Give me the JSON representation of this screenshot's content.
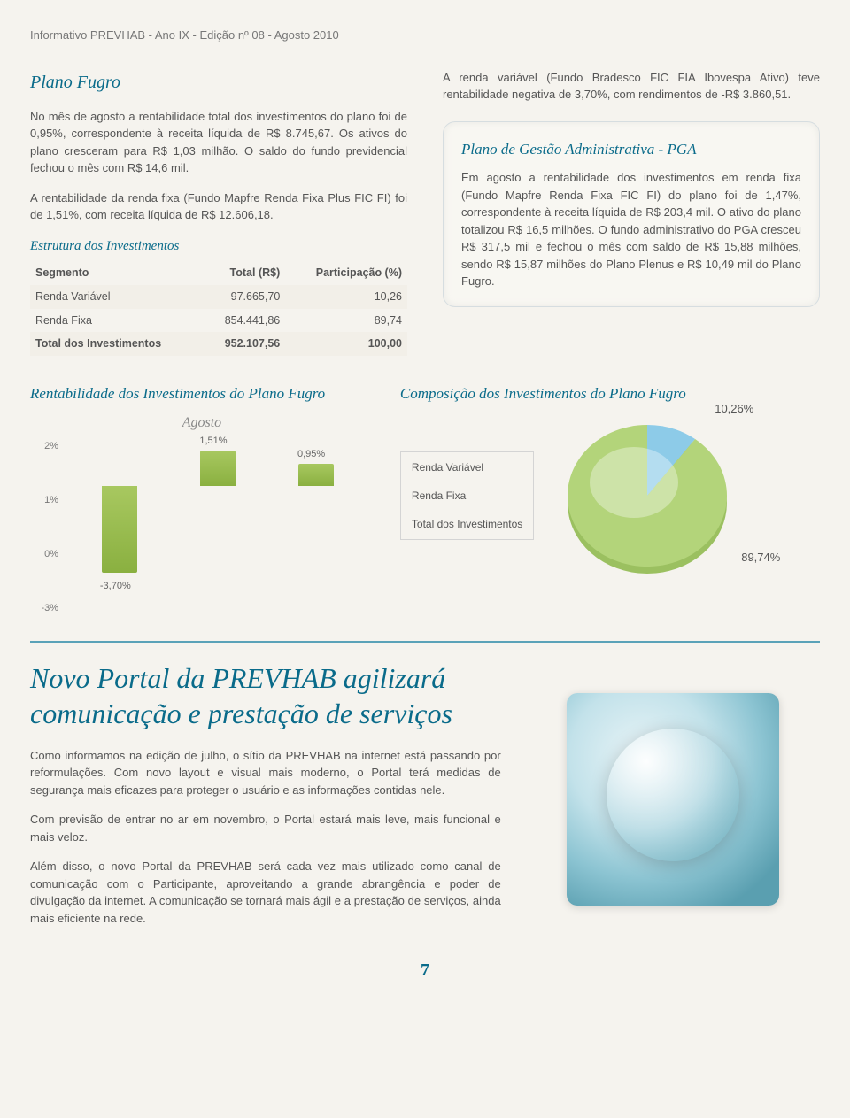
{
  "header": "Informativo PREVHAB  -  Ano IX  -  Edição nº 08  -  Agosto 2010",
  "plano_fugro": {
    "title": "Plano Fugro",
    "p1": "No mês de agosto a rentabilidade total dos investimentos do plano foi de 0,95%, correspondente à receita líquida de R$ 8.745,67. Os ativos do plano cresceram para R$ 1,03 milhão. O saldo do fundo previdencial fechou o mês com R$ 14,6 mil.",
    "p2": "A rentabilidade da renda fixa (Fundo Mapfre Renda Fixa Plus FIC FI) foi de 1,51%, com receita líquida de R$ 12.606,18.",
    "p_right": "A renda variável (Fundo Bradesco FIC FIA Ibovespa Ativo) teve rentabilidade negativa de 3,70%, com rendimentos de -R$ 3.860,51."
  },
  "estrutura": {
    "title": "Estrutura dos Investimentos",
    "col1": "Segmento",
    "col2": "Total (R$)",
    "col3": "Participação (%)",
    "rows": [
      {
        "seg": "Renda Variável",
        "total": "97.665,70",
        "part": "10,26"
      },
      {
        "seg": "Renda Fixa",
        "total": "854.441,86",
        "part": "89,74"
      },
      {
        "seg": "Total dos Investimentos",
        "total": "952.107,56",
        "part": "100,00"
      }
    ]
  },
  "pga": {
    "title": "Plano de Gestão Administrativa - PGA",
    "text": "Em agosto a rentabilidade dos investimentos em renda fixa (Fundo Mapfre Renda Fixa FIC FI) do plano foi de 1,47%, correspondente à receita líquida de R$ 203,4 mil. O ativo do plano totalizou R$ 16,5 milhões. O fundo administrativo do PGA cresceu R$ 317,5 mil e fechou o mês com saldo de R$ 15,88 milhões, sendo R$ 15,87 milhões do Plano Plenus e R$ 10,49 mil do Plano Fugro."
  },
  "bar_chart": {
    "title": "Rentabilidade dos Investimentos do Plano Fugro",
    "subtitle": "Agosto",
    "yticks": [
      "2%",
      "1%",
      "0%",
      "-3%"
    ],
    "bars": [
      {
        "label": "-3,70%",
        "value": -3.7,
        "color_top": "#a8c860",
        "color_bot": "#8ab040"
      },
      {
        "label": "1,51%",
        "value": 1.51,
        "color_top": "#a8c860",
        "color_bot": "#8ab040"
      },
      {
        "label": "0,95%",
        "value": 0.95,
        "color_top": "#a8c860",
        "color_bot": "#8ab040"
      }
    ],
    "y_range_top": 2,
    "y_range_bottom": -4
  },
  "pie_chart": {
    "title": "Composição  dos Investimentos do Plano Fugro",
    "legend": [
      "Renda Variável",
      "Renda Fixa",
      "Total dos Investimentos"
    ],
    "slices": [
      {
        "label": "10,26%",
        "value": 10.26,
        "color": "#8dcbe8"
      },
      {
        "label": "89,74%",
        "value": 89.74,
        "color": "#b3d47a"
      }
    ],
    "bg": "#f5f3ee"
  },
  "novo": {
    "title": "Novo Portal da PREVHAB agilizará comunicação e prestação de serviços",
    "p1": "Como informamos na edição de julho, o sítio da PREVHAB na internet está passando por reformulações. Com novo layout e visual mais moderno, o Portal terá medidas de segurança mais eficazes para proteger o usuário e as informações contidas nele.",
    "p2": "Com previsão de entrar no ar em novembro, o Portal estará mais leve, mais funcional e mais veloz.",
    "p3": "Além disso, o novo Portal da PREVHAB será cada vez mais utilizado como canal de comunicação com o Participante, aproveitando a grande abrangência e poder de divulgação da internet. A comunicação se tornará mais ágil e a prestação de serviços, ainda mais eficiente na rede."
  },
  "page_number": "7"
}
